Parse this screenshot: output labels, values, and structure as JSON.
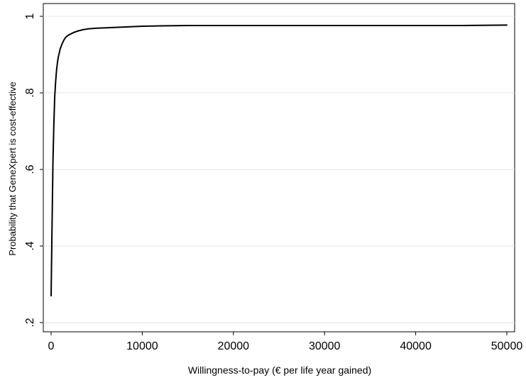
{
  "chart_data": {
    "type": "line",
    "title": "",
    "xlabel": "Willingness-to-pay (€ per life year gained)",
    "ylabel": "Probability that GeneXpert is cost-effective",
    "xlim": [
      0,
      50000
    ],
    "ylim": [
      0.2,
      1.0
    ],
    "x_ticks": [
      {
        "value": 0,
        "label": "0"
      },
      {
        "value": 10000,
        "label": "10000"
      },
      {
        "value": 20000,
        "label": "20000"
      },
      {
        "value": 30000,
        "label": "30000"
      },
      {
        "value": 40000,
        "label": "40000"
      },
      {
        "value": 50000,
        "label": "50000"
      }
    ],
    "y_ticks": [
      {
        "value": 0.2,
        "label": ".2"
      },
      {
        "value": 0.4,
        "label": ".4"
      },
      {
        "value": 0.6,
        "label": ".6"
      },
      {
        "value": 0.8,
        "label": ".8"
      },
      {
        "value": 1.0,
        "label": "1"
      }
    ],
    "grid": "horizontal",
    "legend": "none",
    "series": [
      {
        "color": "#000000",
        "x": [
          0,
          100,
          200,
          300,
          400,
          500,
          600,
          700,
          800,
          900,
          1000,
          1200,
          1400,
          1600,
          1800,
          2000,
          2500,
          3000,
          3500,
          4000,
          5000,
          6000,
          8000,
          10000,
          12000,
          15000,
          20000,
          25000,
          30000,
          35000,
          40000,
          45000,
          50000
        ],
        "y": [
          0.27,
          0.45,
          0.62,
          0.72,
          0.79,
          0.83,
          0.86,
          0.88,
          0.895,
          0.905,
          0.915,
          0.928,
          0.938,
          0.945,
          0.949,
          0.952,
          0.958,
          0.962,
          0.965,
          0.967,
          0.969,
          0.97,
          0.972,
          0.974,
          0.975,
          0.976,
          0.976,
          0.976,
          0.976,
          0.976,
          0.976,
          0.976,
          0.977
        ]
      }
    ]
  }
}
